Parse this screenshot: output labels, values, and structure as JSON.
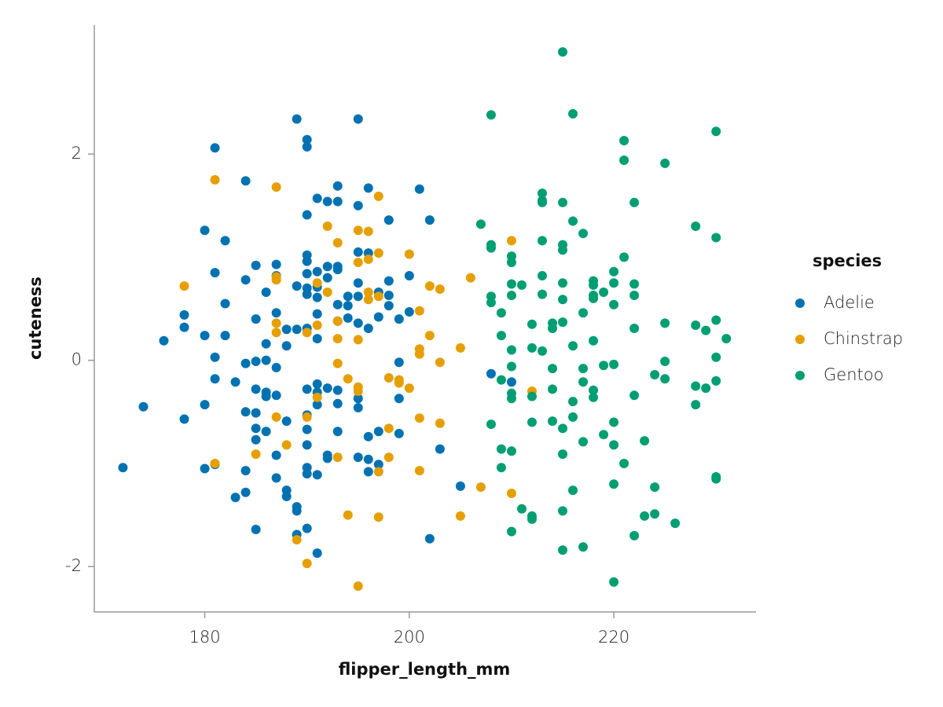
{
  "chart_data": {
    "type": "scatter",
    "x_label": "flipper_length_mm",
    "y_label": "cuteness",
    "legend_title": "species",
    "legend_position": "right",
    "xlim": [
      169.2,
      233.9
    ],
    "ylim": [
      -2.44,
      3.25
    ],
    "xticks": [
      180,
      200,
      220
    ],
    "yticks": [
      -2,
      0,
      2
    ],
    "series": [
      {
        "name": "Adelie",
        "color": "#0072b2",
        "x": [
          172,
          174,
          176,
          178,
          178,
          178,
          180,
          180,
          180,
          180,
          181,
          181,
          181,
          181,
          181,
          182,
          182,
          182,
          183,
          183,
          184,
          184,
          184,
          184,
          184,
          184,
          185,
          185,
          185,
          185,
          185,
          185,
          185,
          185,
          186,
          186,
          186,
          186,
          186,
          186,
          187,
          187,
          187,
          187,
          187,
          187,
          187,
          188,
          188,
          188,
          188,
          188,
          189,
          189,
          189,
          189,
          189,
          189,
          190,
          190,
          190,
          190,
          190,
          190,
          190,
          190,
          190,
          190,
          190,
          190,
          190,
          190,
          190,
          190,
          191,
          191,
          191,
          191,
          191,
          191,
          191,
          191,
          191,
          191,
          191,
          192,
          192,
          192,
          192,
          192,
          192,
          193,
          193,
          193,
          193,
          193,
          193,
          193,
          193,
          193,
          194,
          194,
          194,
          195,
          195,
          195,
          195,
          195,
          195,
          195,
          195,
          195,
          196,
          196,
          196,
          196,
          196,
          196,
          197,
          197,
          197,
          197,
          198,
          198,
          198,
          198,
          199,
          199,
          199,
          199,
          200,
          200,
          201,
          202,
          202,
          203,
          205,
          208,
          210
        ],
        "y": [
          -1.04,
          -0.45,
          0.19,
          -0.57,
          0.44,
          0.32,
          1.26,
          0.24,
          -0.43,
          -1.05,
          2.06,
          0.85,
          0.03,
          -0.18,
          -1.01,
          1.16,
          0.55,
          0.24,
          -0.21,
          -1.33,
          1.74,
          0.78,
          -0.03,
          -0.5,
          -1.07,
          -1.28,
          0.92,
          0.4,
          -0.01,
          -0.28,
          -0.51,
          -0.66,
          -0.77,
          -1.64,
          0.66,
          0.16,
          0,
          -0.31,
          -0.35,
          -0.69,
          0.93,
          0.82,
          0.46,
          -0.07,
          -0.34,
          -0.92,
          -1.14,
          0.3,
          0.14,
          -0.59,
          -1.26,
          -1.32,
          2.34,
          0.72,
          0.3,
          -1.42,
          -1.46,
          -1.69,
          2.14,
          2.07,
          1.41,
          1.02,
          0.96,
          0.84,
          0.7,
          0.64,
          0.31,
          -0.28,
          -0.53,
          -0.67,
          -0.82,
          -1.04,
          -1.1,
          -1.63,
          1.57,
          0.86,
          0.71,
          0.61,
          0.45,
          0.21,
          -0.23,
          -0.31,
          -0.43,
          -1.11,
          -1.87,
          1.54,
          0.91,
          0.8,
          -0.27,
          -0.92,
          -0.95,
          1.69,
          1.54,
          0.91,
          0.88,
          0.54,
          0.38,
          -0.29,
          -0.42,
          -0.69,
          0.62,
          0.53,
          0.41,
          2.34,
          1.5,
          1.05,
          0.75,
          0.62,
          0.36,
          -0.37,
          -0.46,
          -0.94,
          1.67,
          1.04,
          0.31,
          -0.74,
          -0.96,
          -1.08,
          0.66,
          0.42,
          -0.69,
          -1.01,
          1.36,
          0.77,
          0.63,
          0.53,
          0.4,
          -0.02,
          -0.37,
          -0.71,
          0.82,
          0.47,
          1.66,
          1.36,
          -1.73,
          -0.86,
          -1.22,
          -0.13,
          -0.21
        ]
      },
      {
        "name": "Chinstrap",
        "color": "#e69f00",
        "x": [
          178,
          181,
          181,
          185,
          187,
          187,
          187,
          187,
          187,
          187,
          188,
          189,
          190,
          190,
          190,
          191,
          191,
          191,
          192,
          192,
          193,
          193,
          193,
          193,
          193,
          194,
          194,
          195,
          195,
          195,
          195,
          195,
          195,
          196,
          196,
          196,
          196,
          197,
          197,
          197,
          197,
          197,
          198,
          198,
          198,
          199,
          199,
          200,
          200,
          201,
          201,
          201,
          201,
          201,
          202,
          202,
          203,
          203,
          203,
          205,
          205,
          206,
          207,
          210,
          210,
          212
        ],
        "y": [
          0.72,
          1.75,
          -1,
          -0.91,
          1.68,
          0.81,
          0.78,
          0.36,
          0.27,
          -0.55,
          -0.82,
          -1.74,
          0.27,
          -0.55,
          -1.97,
          0.75,
          0.34,
          -0.36,
          1.3,
          0.66,
          1.14,
          0.38,
          0.21,
          -0.03,
          -0.94,
          -0.18,
          -1.5,
          1.26,
          0.95,
          0.2,
          -0.26,
          -0.3,
          -2.19,
          1.25,
          0.98,
          0.66,
          0.59,
          1.59,
          1.04,
          0.62,
          -1.08,
          -1.52,
          -0.17,
          -0.66,
          -0.94,
          -0.19,
          -0.22,
          1.03,
          -0.27,
          0.48,
          0.11,
          0.06,
          -0.56,
          -1.07,
          0.72,
          0.24,
          0.69,
          -0.02,
          -0.61,
          0.12,
          -1.51,
          0.8,
          -1.23,
          1.16,
          -1.29,
          -0.3
        ]
      },
      {
        "name": "Gentoo",
        "color": "#009e73",
        "x": [
          207,
          208,
          208,
          208,
          208,
          208,
          208,
          209,
          209,
          209,
          209,
          209,
          210,
          210,
          210,
          210,
          210,
          210,
          210,
          210,
          210,
          210,
          211,
          211,
          212,
          212,
          212,
          212,
          212,
          212,
          213,
          213,
          213,
          213,
          213,
          213,
          213,
          214,
          214,
          214,
          214,
          214,
          215,
          215,
          215,
          215,
          215,
          215,
          215,
          215,
          215,
          215,
          215,
          216,
          216,
          216,
          216,
          216,
          216,
          217,
          217,
          217,
          217,
          217,
          217,
          218,
          218,
          218,
          218,
          218,
          218,
          218,
          219,
          219,
          219,
          220,
          220,
          220,
          220,
          220,
          220,
          220,
          220,
          221,
          221,
          221,
          221,
          222,
          222,
          222,
          222,
          222,
          222,
          223,
          223,
          224,
          224,
          224,
          225,
          225,
          225,
          225,
          226,
          228,
          228,
          228,
          228,
          229,
          229,
          230,
          230,
          230,
          230,
          230,
          230,
          230,
          231
        ],
        "y": [
          1.32,
          2.38,
          1.12,
          1.09,
          0.62,
          0.56,
          -0.62,
          0.46,
          0.24,
          -0.19,
          -0.86,
          -1.04,
          1.01,
          0.95,
          0.74,
          0.63,
          0.1,
          -0.06,
          -0.32,
          -0.37,
          -0.88,
          -1.66,
          0.73,
          -1.44,
          0.35,
          0.12,
          -0.35,
          -0.6,
          -1.51,
          -1.54,
          1.62,
          1.55,
          1.53,
          1.16,
          0.82,
          0.64,
          0.09,
          0.36,
          0.31,
          -0.08,
          -0.28,
          -0.59,
          2.99,
          1.53,
          1.12,
          1.07,
          0.75,
          0.59,
          0.37,
          -0.66,
          -0.91,
          -1.46,
          -1.84,
          2.39,
          1.35,
          0.14,
          -0.4,
          -0.55,
          -1.26,
          1.23,
          0.46,
          -0.08,
          -0.21,
          -0.79,
          -1.81,
          0.77,
          0.73,
          0.63,
          0.6,
          0.19,
          -0.29,
          -0.36,
          0.66,
          -0.05,
          -0.72,
          0.86,
          0.75,
          0.54,
          -0.04,
          -0.6,
          -0.82,
          -1.2,
          -2.15,
          2.13,
          1.94,
          1,
          -1,
          1.53,
          0.74,
          0.63,
          0.31,
          -0.34,
          -1.7,
          -0.78,
          -1.51,
          -0.14,
          -1.23,
          -1.49,
          1.91,
          0.36,
          -0.01,
          -0.18,
          -1.58,
          1.3,
          0.34,
          -0.25,
          -0.43,
          0.29,
          -0.27,
          2.22,
          1.19,
          0.39,
          0.03,
          -0.2,
          -1.13,
          -1.15,
          0.21
        ]
      }
    ]
  }
}
